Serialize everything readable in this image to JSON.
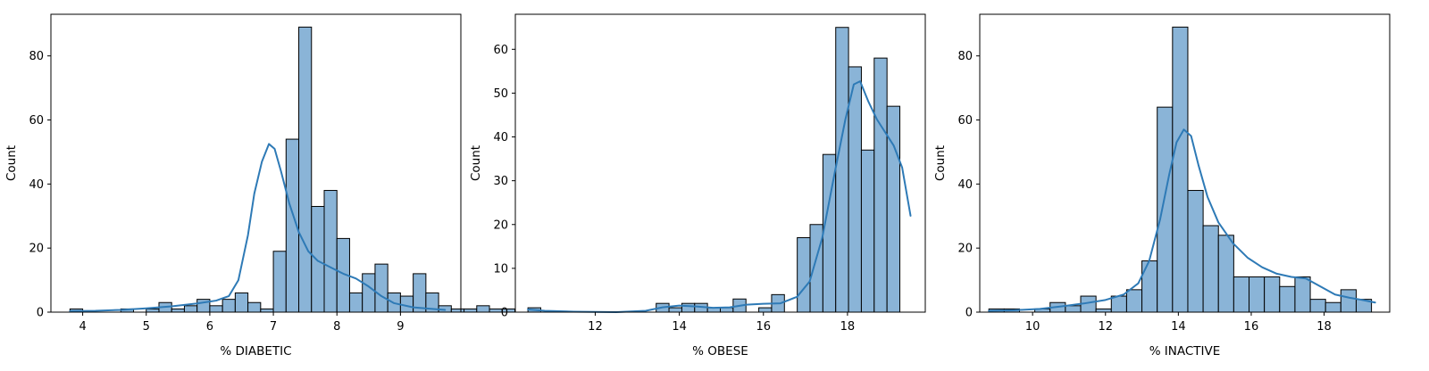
{
  "colors": {
    "bar_fill": "#8ab4d7",
    "bar_edge": "#000000",
    "kde_line": "#2e7ab6",
    "frame": "#000000"
  },
  "chart_data": [
    {
      "type": "histogram",
      "xlabel": "% DIABETIC",
      "ylabel": "Count",
      "xlim": [
        3.5,
        9.95
      ],
      "ylim": [
        0,
        93
      ],
      "xticks": [
        4,
        5,
        6,
        7,
        8,
        9
      ],
      "yticks": [
        0,
        20,
        40,
        60,
        80
      ],
      "bin_start": 3.8,
      "bin_width": 0.2,
      "counts": [
        1,
        0,
        0,
        0,
        1,
        0,
        1,
        3,
        1,
        2,
        4,
        2,
        4,
        6,
        3,
        1,
        19,
        54,
        89,
        33,
        38,
        23,
        6,
        12,
        15,
        6,
        5,
        12,
        6,
        2,
        1,
        1,
        2,
        1,
        1
      ],
      "kde": [
        [
          3.8,
          0.3
        ],
        [
          4.2,
          0.4
        ],
        [
          4.6,
          0.7
        ],
        [
          5.0,
          1.2
        ],
        [
          5.4,
          1.8
        ],
        [
          5.8,
          2.7
        ],
        [
          6.1,
          3.6
        ],
        [
          6.3,
          5.0
        ],
        [
          6.45,
          10
        ],
        [
          6.6,
          24
        ],
        [
          6.7,
          37
        ],
        [
          6.82,
          47
        ],
        [
          6.93,
          52.5
        ],
        [
          7.02,
          51
        ],
        [
          7.12,
          44
        ],
        [
          7.25,
          34
        ],
        [
          7.4,
          25
        ],
        [
          7.55,
          19
        ],
        [
          7.7,
          16
        ],
        [
          7.9,
          14
        ],
        [
          8.1,
          12
        ],
        [
          8.3,
          10.5
        ],
        [
          8.5,
          8
        ],
        [
          8.7,
          5
        ],
        [
          8.9,
          2.8
        ],
        [
          9.2,
          1.5
        ],
        [
          9.5,
          1
        ],
        [
          9.7,
          0.7
        ]
      ],
      "grid": false,
      "legend": "none"
    },
    {
      "type": "histogram",
      "xlabel": "% OBESE",
      "ylabel": "Count",
      "xlim": [
        10.1,
        19.85
      ],
      "ylim": [
        0,
        68
      ],
      "xticks": [
        12,
        14,
        16,
        18
      ],
      "yticks": [
        0,
        10,
        20,
        30,
        40,
        50,
        60
      ],
      "bin_start": 10.4,
      "bin_width": 0.305,
      "counts": [
        1,
        0,
        0,
        0,
        0,
        0,
        0,
        0,
        0,
        0,
        2,
        1,
        2,
        2,
        1,
        1,
        3,
        0,
        1,
        4,
        0,
        17,
        20,
        36,
        65,
        56,
        37,
        58,
        47
      ],
      "kde": [
        [
          10.4,
          0.6
        ],
        [
          10.8,
          0.3
        ],
        [
          11.5,
          0.1
        ],
        [
          12.5,
          0
        ],
        [
          13.2,
          0.3
        ],
        [
          13.6,
          1.1
        ],
        [
          14.0,
          1.5
        ],
        [
          14.4,
          1.3
        ],
        [
          14.8,
          1.0
        ],
        [
          15.2,
          1.1
        ],
        [
          15.6,
          1.7
        ],
        [
          16.0,
          1.9
        ],
        [
          16.4,
          2.0
        ],
        [
          16.8,
          3.5
        ],
        [
          17.1,
          7
        ],
        [
          17.4,
          17
        ],
        [
          17.7,
          32
        ],
        [
          17.95,
          44
        ],
        [
          18.15,
          52
        ],
        [
          18.3,
          52.7
        ],
        [
          18.5,
          48
        ],
        [
          18.7,
          44
        ],
        [
          18.9,
          41
        ],
        [
          19.1,
          38
        ],
        [
          19.3,
          33
        ],
        [
          19.5,
          22
        ]
      ],
      "grid": false,
      "legend": "none"
    },
    {
      "type": "histogram",
      "xlabel": "% INACTIVE",
      "ylabel": "Count",
      "xlim": [
        8.55,
        19.8
      ],
      "ylim": [
        0,
        93
      ],
      "xticks": [
        10,
        12,
        14,
        16,
        18
      ],
      "yticks": [
        0,
        20,
        40,
        60,
        80
      ],
      "bin_start": 8.8,
      "bin_width": 0.42,
      "counts": [
        1,
        1,
        0,
        1,
        3,
        2,
        5,
        1,
        5,
        7,
        16,
        64,
        89,
        38,
        27,
        24,
        11,
        11,
        11,
        8,
        11,
        4,
        3,
        7,
        4
      ],
      "kde": [
        [
          8.8,
          0.4
        ],
        [
          9.5,
          0.6
        ],
        [
          10.2,
          1.0
        ],
        [
          10.8,
          1.8
        ],
        [
          11.4,
          2.7
        ],
        [
          12.0,
          3.8
        ],
        [
          12.5,
          5.5
        ],
        [
          12.9,
          9
        ],
        [
          13.2,
          16
        ],
        [
          13.5,
          29
        ],
        [
          13.75,
          43
        ],
        [
          13.95,
          53
        ],
        [
          14.15,
          57
        ],
        [
          14.35,
          55
        ],
        [
          14.55,
          46
        ],
        [
          14.8,
          36
        ],
        [
          15.1,
          28
        ],
        [
          15.5,
          21.5
        ],
        [
          15.9,
          17
        ],
        [
          16.3,
          14
        ],
        [
          16.7,
          12
        ],
        [
          17.1,
          11
        ],
        [
          17.5,
          10.5
        ],
        [
          17.9,
          8
        ],
        [
          18.3,
          5.5
        ],
        [
          18.7,
          4.5
        ],
        [
          19.1,
          3.7
        ],
        [
          19.4,
          3
        ]
      ],
      "grid": false,
      "legend": "none"
    }
  ]
}
